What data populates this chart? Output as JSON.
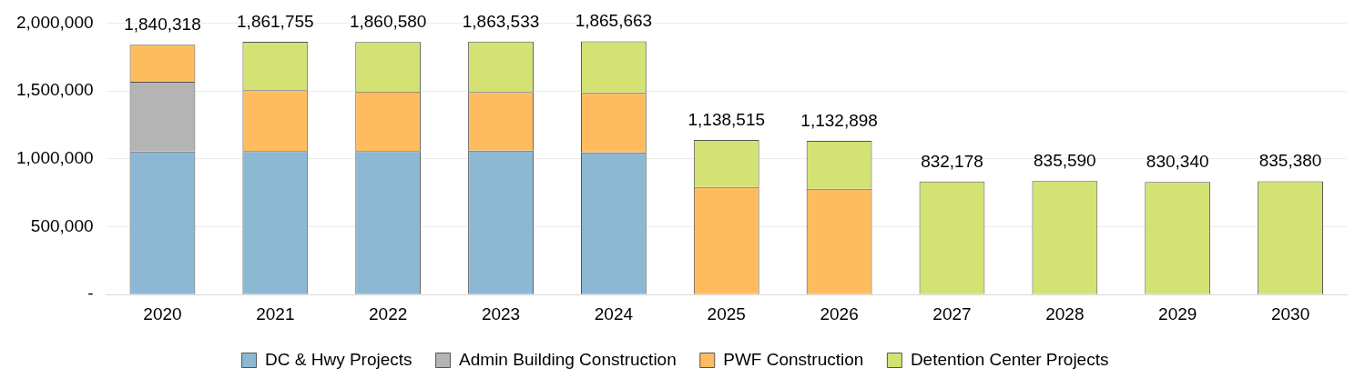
{
  "chart_data": {
    "type": "bar",
    "stacked": true,
    "categories": [
      "2020",
      "2021",
      "2022",
      "2023",
      "2024",
      "2025",
      "2026",
      "2027",
      "2028",
      "2029",
      "2030"
    ],
    "series": [
      {
        "name": "DC & Hwy Projects",
        "color": "#8cb8d4",
        "values": [
          1054000,
          1057000,
          1057000,
          1060000,
          1047000,
          null,
          null,
          null,
          null,
          null,
          null
        ]
      },
      {
        "name": "Admin Building Construction",
        "color": "#b4b4b4",
        "values": [
          513000,
          null,
          null,
          null,
          null,
          null,
          null,
          null,
          null,
          null,
          null
        ]
      },
      {
        "name": "PWF Construction",
        "color": "#ffbc5e",
        "values": [
          273318,
          449000,
          439000,
          433000,
          442000,
          793000,
          780000,
          null,
          null,
          null,
          null
        ]
      },
      {
        "name": "Detention Center Projects",
        "color": "#d4e274",
        "values": [
          null,
          355755,
          364580,
          370533,
          376663,
          345515,
          352898,
          832178,
          835590,
          830340,
          835380
        ]
      }
    ],
    "totals": [
      "1,840,318",
      "1,861,755",
      "1,860,580",
      "1,863,533",
      "1,865,663",
      "1,138,515",
      "1,132,898",
      "832,178",
      "835,590",
      "830,340",
      "835,380"
    ],
    "ylim": [
      0,
      2000000
    ],
    "yticks": [
      {
        "value": 0,
        "label": "-"
      },
      {
        "value": 500000,
        "label": "500,000"
      },
      {
        "value": 1000000,
        "label": "1,000,000"
      },
      {
        "value": 1500000,
        "label": "1,500,000"
      },
      {
        "value": 2000000,
        "label": "2,000,000"
      }
    ],
    "grid": "y",
    "legend": "bottom"
  }
}
